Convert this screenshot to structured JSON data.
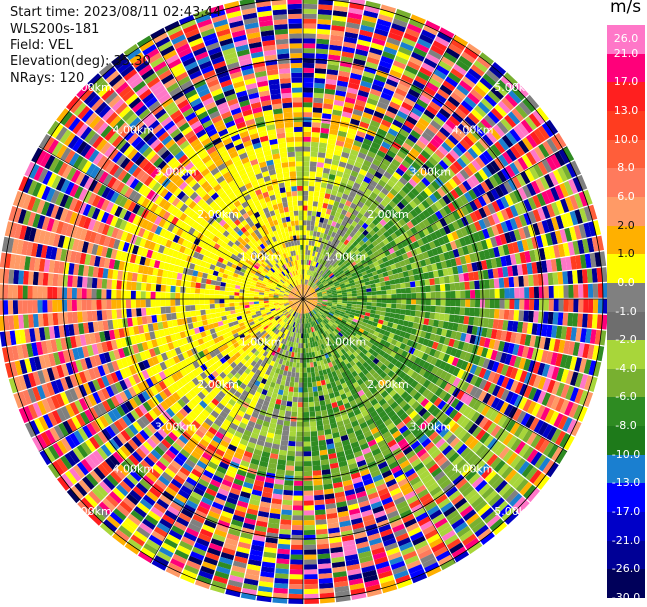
{
  "header": {
    "start_time": "Start time: 2023/08/11 02:43:44",
    "instrument": "WLS200s-181",
    "field": "Field: VEL",
    "elevation": "Elevation(deg): 35.30",
    "nrays": "NRays: 120"
  },
  "colorbar": {
    "unit": "m/s",
    "levels": [
      "26.0",
      "21.0",
      "17.0",
      "13.0",
      "10.0",
      "8.0",
      "6.0",
      "2.0",
      "1.0",
      "0.0",
      "-1.0",
      "-2.0",
      "-4.0",
      "-6.0",
      "-8.0",
      "-10.0",
      "-13.0",
      "-17.0",
      "-21.0",
      "-26.0",
      "-30.0"
    ],
    "colors": [
      "#ff77c8",
      "#ff007a",
      "#ff1f1f",
      "#ff3c1f",
      "#ff5e3a",
      "#ff7a5c",
      "#ff9a66",
      "#ffb000",
      "#ffff00",
      "#808080",
      "#6e6e6e",
      "#a8d63a",
      "#78b030",
      "#2e8b22",
      "#1e7a1a",
      "#1a7fd0",
      "#0000ff",
      "#0000c8",
      "#000096",
      "#00005a"
    ]
  },
  "chart_data": {
    "type": "heatmap",
    "subtype": "ppi",
    "field": "VEL",
    "nrays": 120,
    "elevation_deg": 35.3,
    "range_rings_km": [
      1.0,
      2.0,
      3.0,
      4.0,
      5.0
    ],
    "range_ring_labels": [
      "1.00km",
      "2.00km",
      "3.00km",
      "4.00km",
      "5.00km"
    ],
    "colorbar_unit": "m/s",
    "colorbar_range": [
      -30.0,
      26.0
    ]
  }
}
